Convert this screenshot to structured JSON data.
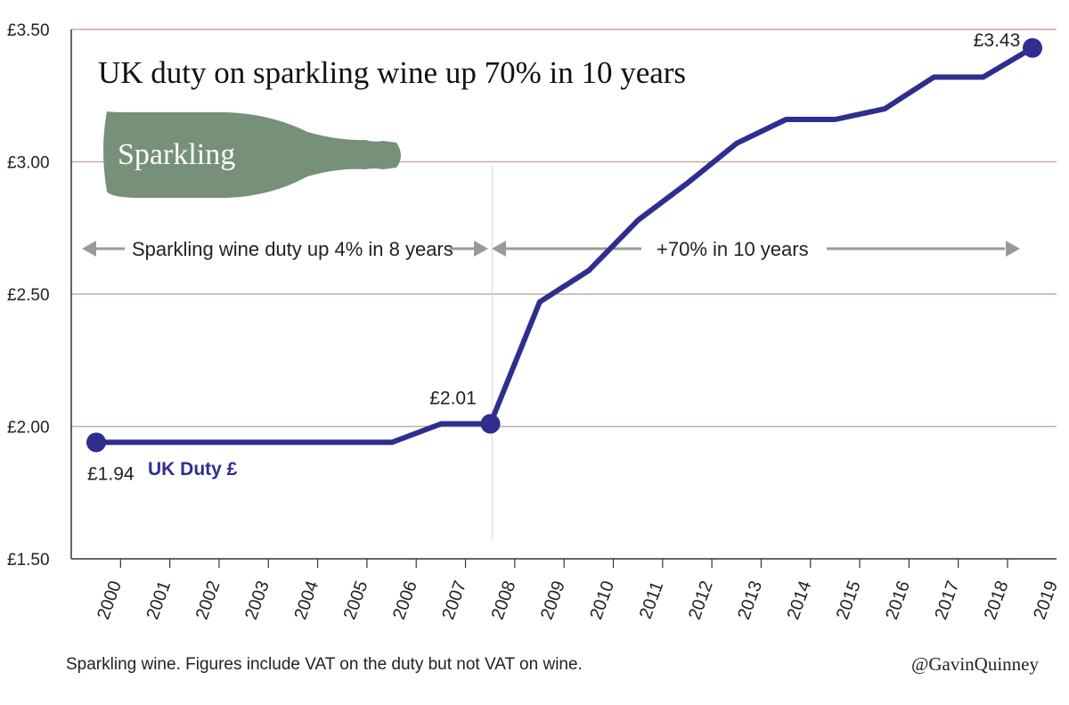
{
  "colors": {
    "line": "#2e2e8f",
    "grid": "#c9a9a2",
    "axis": "#333333",
    "bottle": "#76907a",
    "arrow": "#9a9a9a",
    "text": "#222222"
  },
  "chart_data": {
    "type": "line",
    "title": "UK duty on sparkling wine up 70% in 10 years",
    "x": [
      "2000",
      "2001",
      "2002",
      "2003",
      "2004",
      "2005",
      "2006",
      "2007",
      "2008",
      "2009",
      "2010",
      "2011",
      "2012",
      "2013",
      "2014",
      "2015",
      "2016",
      "2017",
      "2018",
      "2019"
    ],
    "series": [
      {
        "name": "UK Duty £",
        "values": [
          1.94,
          1.94,
          1.94,
          1.94,
          1.94,
          1.94,
          1.94,
          2.01,
          2.01,
          2.47,
          2.59,
          2.78,
          2.92,
          3.07,
          3.16,
          3.16,
          3.2,
          3.32,
          3.32,
          3.43
        ]
      }
    ],
    "y_ticks": [
      "£1.50",
      "£2.00",
      "£2.50",
      "£3.00",
      "£3.50"
    ],
    "ylim": [
      1.5,
      3.5
    ],
    "grid": true,
    "point_labels": [
      {
        "x": "2000",
        "text": "£1.94"
      },
      {
        "x": "2008",
        "text": "£2.01"
      },
      {
        "x": "2019",
        "text": "£3.43"
      }
    ],
    "annotations": {
      "bottle_label": "Sparkling",
      "left_span": "Sparkling wine duty up 4% in 8 years",
      "right_span": "+70% in 10 years"
    }
  },
  "footer": {
    "note": "Sparkling wine. Figures include VAT on the duty but not VAT on wine.",
    "credit": "@GavinQuinney"
  }
}
